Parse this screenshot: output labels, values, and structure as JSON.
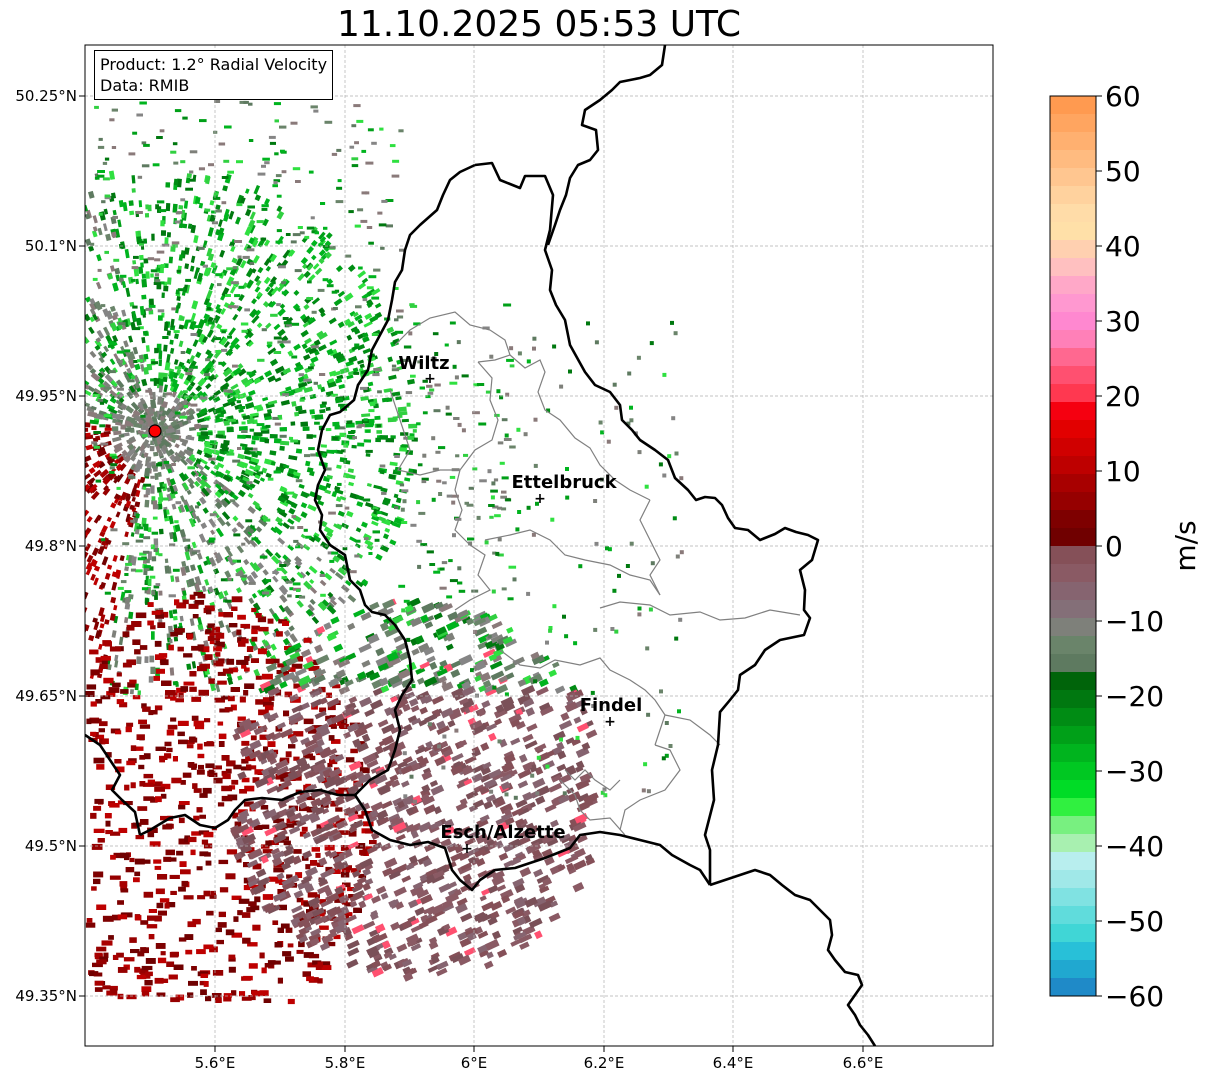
{
  "title": "11.10.2025 05:53 UTC",
  "info": {
    "product": "Product: 1.2° Radial Velocity",
    "data": "Data: RMIB"
  },
  "axes": {
    "lon_ticks": [
      "5.6°E",
      "5.8°E",
      "6°E",
      "6.2°E",
      "6.4°E",
      "6.6°E"
    ],
    "lat_ticks": [
      "50.25°N",
      "50.1°N",
      "49.95°N",
      "49.8°N",
      "49.65°N",
      "49.5°N",
      "49.35°N"
    ]
  },
  "cities": [
    {
      "name": "Wiltz"
    },
    {
      "name": "Ettelbruck"
    },
    {
      "name": "Findel"
    },
    {
      "name": "Esch/Alzette"
    }
  ],
  "colorbar": {
    "label": "m/s",
    "ticks": [
      "60",
      "50",
      "40",
      "30",
      "20",
      "10",
      "0",
      "−10",
      "−20",
      "−30",
      "−40",
      "−50",
      "−60"
    ],
    "min": -60,
    "max": 60
  },
  "colors": {
    "radar_site": "#ff0000",
    "border": "#000000",
    "district": "#808080",
    "grid": "#b0b0b0"
  }
}
